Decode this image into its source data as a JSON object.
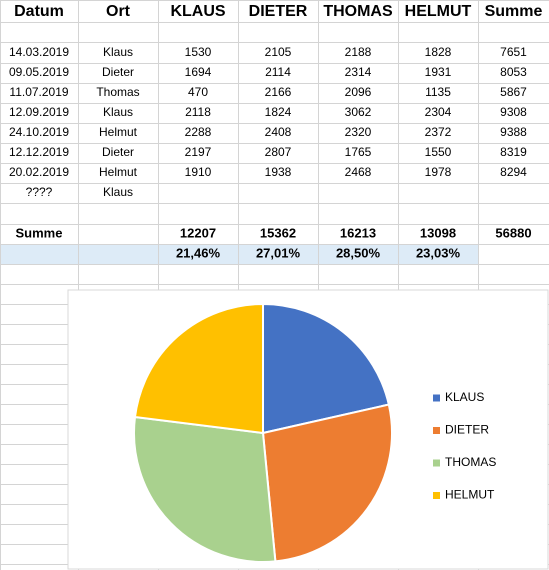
{
  "table": {
    "header": [
      "Datum",
      "Ort",
      "KLAUS",
      "DIETER",
      "THOMAS",
      "HELMUT",
      "Summe"
    ],
    "rows": [
      [
        "14.03.2019",
        "Klaus",
        1530,
        2105,
        2188,
        1828,
        7651
      ],
      [
        "09.05.2019",
        "Dieter",
        1694,
        2114,
        2314,
        1931,
        8053
      ],
      [
        "11.07.2019",
        "Thomas",
        470,
        2166,
        2096,
        1135,
        5867
      ],
      [
        "12.09.2019",
        "Klaus",
        2118,
        1824,
        3062,
        2304,
        9308
      ],
      [
        "24.10.2019",
        "Helmut",
        2288,
        2408,
        2320,
        2372,
        9388
      ],
      [
        "12.12.2019",
        "Dieter",
        2197,
        2807,
        1765,
        1550,
        8319
      ],
      [
        "20.02.2019",
        "Helmut",
        1910,
        1938,
        2468,
        1978,
        8294
      ],
      [
        "????",
        "Klaus"
      ]
    ],
    "total": {
      "label": "Summe",
      "values": [
        12207,
        15362,
        16213,
        13098
      ],
      "grand_total": 56880
    },
    "shares": [
      "21,46%",
      "27,01%",
      "28,50%",
      "23,03%"
    ]
  },
  "chart_data": {
    "type": "pie",
    "categories": [
      "KLAUS",
      "DIETER",
      "THOMAS",
      "HELMUT"
    ],
    "values": [
      12207,
      15362,
      16213,
      13098
    ],
    "colors": [
      "#4472c4",
      "#ed7d31",
      "#a9d18e",
      "#ffc000"
    ],
    "legend": "right"
  }
}
